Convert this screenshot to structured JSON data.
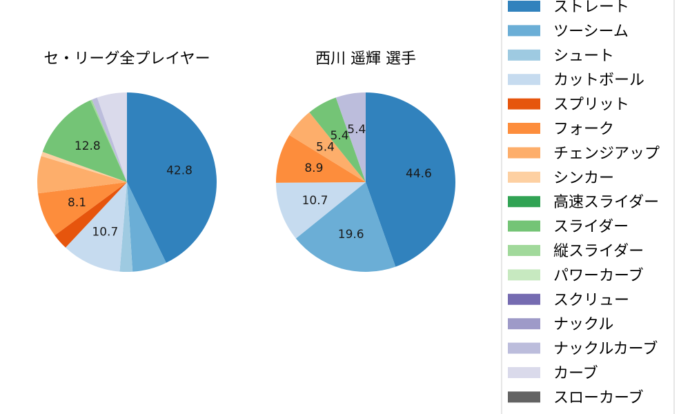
{
  "chart_data": [
    {
      "type": "pie",
      "title": "セ・リーグ全プレイヤー",
      "slices": [
        {
          "label": "ストレート",
          "value": 42.8,
          "color": "#3182bd",
          "show": true
        },
        {
          "label": "ツーシーム",
          "value": 6.2,
          "color": "#6baed6",
          "show": false
        },
        {
          "label": "シュート",
          "value": 2.3,
          "color": "#9ecae1",
          "show": false
        },
        {
          "label": "カットボール",
          "value": 10.7,
          "color": "#c6dbef",
          "show": true
        },
        {
          "label": "スプリット",
          "value": 2.9,
          "color": "#e6550d",
          "show": false
        },
        {
          "label": "フォーク",
          "value": 8.1,
          "color": "#fd8d3c",
          "show": true
        },
        {
          "label": "チェンジアップ",
          "value": 6.7,
          "color": "#fdae6b",
          "show": false
        },
        {
          "label": "シンカー",
          "value": 0.8,
          "color": "#fdd0a2",
          "show": false
        },
        {
          "label": "高速スライダー",
          "value": 0.0,
          "color": "#31a354",
          "show": false
        },
        {
          "label": "スライダー",
          "value": 12.8,
          "color": "#74c476",
          "show": true
        },
        {
          "label": "縦スライダー",
          "value": 0.3,
          "color": "#a1d99b",
          "show": false
        },
        {
          "label": "パワーカーブ",
          "value": 0.0,
          "color": "#c7e9c0",
          "show": false
        },
        {
          "label": "スクリュー",
          "value": 0.0,
          "color": "#756bb1",
          "show": false
        },
        {
          "label": "ナックル",
          "value": 0.0,
          "color": "#9e9ac8",
          "show": false
        },
        {
          "label": "ナックルカーブ",
          "value": 1.0,
          "color": "#bcbddc",
          "show": false
        },
        {
          "label": "カーブ",
          "value": 5.4,
          "color": "#dadaeb",
          "show": false
        },
        {
          "label": "スローカーブ",
          "value": 0.0,
          "color": "#636363",
          "show": false
        }
      ]
    },
    {
      "type": "pie",
      "title": "西川 遥輝  選手",
      "slices": [
        {
          "label": "ストレート",
          "value": 44.6,
          "color": "#3182bd",
          "show": true
        },
        {
          "label": "ツーシーム",
          "value": 19.6,
          "color": "#6baed6",
          "show": true
        },
        {
          "label": "カットボール",
          "value": 10.7,
          "color": "#c6dbef",
          "show": true
        },
        {
          "label": "フォーク",
          "value": 8.9,
          "color": "#fd8d3c",
          "show": true
        },
        {
          "label": "チェンジアップ",
          "value": 5.4,
          "color": "#fdae6b",
          "show": true
        },
        {
          "label": "スライダー",
          "value": 5.4,
          "color": "#74c476",
          "show": true
        },
        {
          "label": "ナックルカーブ",
          "value": 5.4,
          "color": "#bcbddc",
          "show": true
        }
      ]
    }
  ],
  "legend": {
    "placement": "right",
    "items": [
      {
        "label": "ストレート",
        "color": "#3182bd"
      },
      {
        "label": "ツーシーム",
        "color": "#6baed6"
      },
      {
        "label": "シュート",
        "color": "#9ecae1"
      },
      {
        "label": "カットボール",
        "color": "#c6dbef"
      },
      {
        "label": "スプリット",
        "color": "#e6550d"
      },
      {
        "label": "フォーク",
        "color": "#fd8d3c"
      },
      {
        "label": "チェンジアップ",
        "color": "#fdae6b"
      },
      {
        "label": "シンカー",
        "color": "#fdd0a2"
      },
      {
        "label": "高速スライダー",
        "color": "#31a354"
      },
      {
        "label": "スライダー",
        "color": "#74c476"
      },
      {
        "label": "縦スライダー",
        "color": "#a1d99b"
      },
      {
        "label": "パワーカーブ",
        "color": "#c7e9c0"
      },
      {
        "label": "スクリュー",
        "color": "#756bb1"
      },
      {
        "label": "ナックル",
        "color": "#9e9ac8"
      },
      {
        "label": "ナックルカーブ",
        "color": "#bcbddc"
      },
      {
        "label": "カーブ",
        "color": "#dadaeb"
      },
      {
        "label": "スローカーブ",
        "color": "#636363"
      }
    ]
  }
}
